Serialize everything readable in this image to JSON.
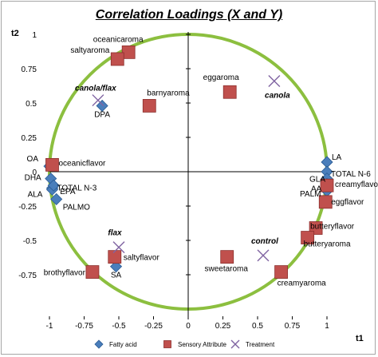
{
  "chart_data": {
    "type": "scatter",
    "title": "Correlation Loadings (X and Y)",
    "xlabel": "t1",
    "ylabel": "t2",
    "xlim": [
      -1,
      1
    ],
    "ylim": [
      -1,
      1
    ],
    "x_ticks": [
      -1,
      -0.75,
      -0.5,
      -0.25,
      0,
      0.25,
      0.5,
      0.75,
      1
    ],
    "x_tick_labels": [
      "-1",
      "-0.75",
      "-0.5",
      "-0.25",
      "0",
      "0.25",
      "0.5",
      "0.75",
      "1"
    ],
    "y_ticks": [
      1,
      0.75,
      0.5,
      0.25,
      0,
      -0.25,
      -0.5,
      -0.75
    ],
    "y_tick_labels": [
      "1",
      "0.75",
      "0.5",
      "0.25",
      "0",
      "-0.25",
      "-0.5",
      "-0.75"
    ],
    "correlation_circle_radius": 1,
    "colors": {
      "circle": "#8cbf3f",
      "fatty_acid": "#4a7ebb",
      "sensory": "#c0504d",
      "treatment": "#8064a2",
      "axis": "#000000",
      "frame": "#a6a6a6"
    },
    "legend": {
      "position": "bottom",
      "entries": [
        {
          "label": "Fatty acid",
          "marker": "diamond"
        },
        {
          "label": "Sensory Attribute",
          "marker": "square"
        },
        {
          "label": "Treatment",
          "marker": "x"
        }
      ]
    },
    "series": [
      {
        "name": "Fatty acid",
        "marker": "diamond",
        "points": [
          {
            "label": "DPA",
            "x": -0.62,
            "y": 0.48
          },
          {
            "label": "OA",
            "x": -1.0,
            "y": 0.04
          },
          {
            "label": "DHA",
            "x": -0.99,
            "y": -0.05
          },
          {
            "label": "TOTAL N-3",
            "x": -0.98,
            "y": -0.12
          },
          {
            "label": "ALA",
            "x": -0.98,
            "y": -0.13
          },
          {
            "label": "EPA",
            "x": -0.97,
            "y": -0.1
          },
          {
            "label": "PALMO",
            "x": -0.95,
            "y": -0.2
          },
          {
            "label": "LA",
            "x": 1.0,
            "y": 0.07
          },
          {
            "label": "TOTAL N-6",
            "x": 1.0,
            "y": 0.0
          },
          {
            "label": "GLA",
            "x": 1.0,
            "y": -0.05
          },
          {
            "label": "AA",
            "x": 1.0,
            "y": -0.09
          },
          {
            "label": "PALM",
            "x": 1.0,
            "y": -0.14
          },
          {
            "label": "SA",
            "x": -0.52,
            "y": -0.69
          }
        ]
      },
      {
        "name": "Sensory Attribute",
        "marker": "square",
        "points": [
          {
            "label": "oceanicaroma",
            "x": -0.43,
            "y": 0.87
          },
          {
            "label": "saltyaroma",
            "x": -0.51,
            "y": 0.82
          },
          {
            "label": "barnyaroma",
            "x": -0.28,
            "y": 0.48
          },
          {
            "label": "eggaroma",
            "x": 0.3,
            "y": 0.58
          },
          {
            "label": "oceanicflavor",
            "x": -0.98,
            "y": 0.05
          },
          {
            "label": "creamyflavor",
            "x": 1.0,
            "y": -0.1
          },
          {
            "label": "eggflavor",
            "x": 0.99,
            "y": -0.22
          },
          {
            "label": "butteryflavor",
            "x": 0.92,
            "y": -0.41
          },
          {
            "label": "butteryaroma",
            "x": 0.86,
            "y": -0.48
          },
          {
            "label": "saltyflavor",
            "x": -0.53,
            "y": -0.62
          },
          {
            "label": "sweetaroma",
            "x": 0.28,
            "y": -0.62
          },
          {
            "label": "brothyflavor",
            "x": -0.69,
            "y": -0.73
          },
          {
            "label": "creamyaroma",
            "x": 0.67,
            "y": -0.73
          }
        ]
      },
      {
        "name": "Treatment",
        "marker": "x",
        "points": [
          {
            "label": "canola/flax",
            "x": -0.65,
            "y": 0.52
          },
          {
            "label": "canola",
            "x": 0.62,
            "y": 0.66
          },
          {
            "label": "flax",
            "x": -0.5,
            "y": -0.55
          },
          {
            "label": "control",
            "x": 0.54,
            "y": -0.61
          }
        ]
      }
    ]
  }
}
